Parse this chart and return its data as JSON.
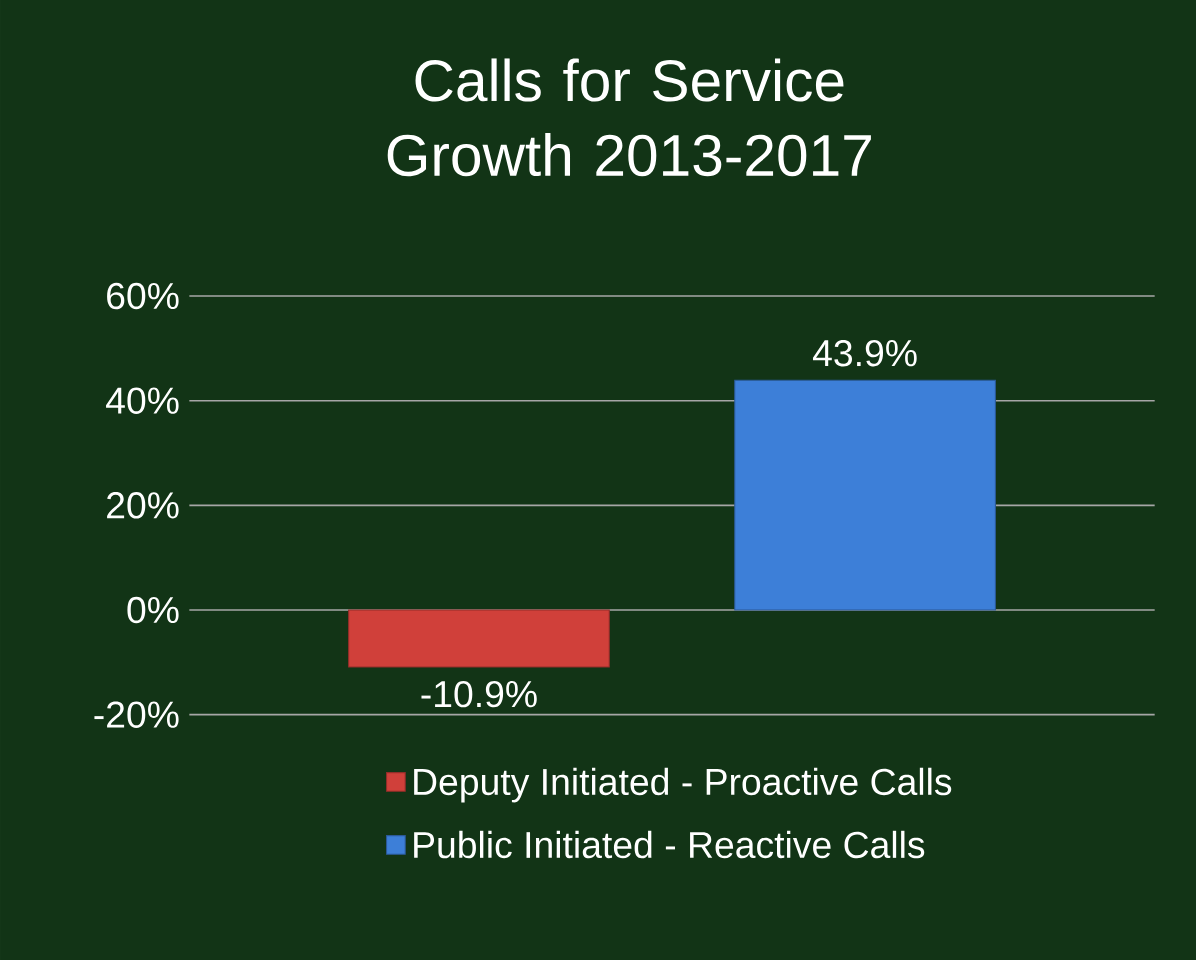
{
  "chart_data": {
    "type": "bar",
    "title": "Calls for Service Growth 2013-2017",
    "categories": [
      null
    ],
    "series": [
      {
        "name": "Deputy Initiated - Proactive Calls",
        "color": "#d0403a",
        "values": [
          -10.9
        ],
        "value_labels": [
          "-10.9%"
        ]
      },
      {
        "name": "Public Initiated - Reactive Calls",
        "color": "#3d7fd8",
        "values": [
          43.9
        ],
        "value_labels": [
          "43.9%"
        ]
      }
    ],
    "ylim": [
      -20,
      60
    ],
    "yticks": [
      {
        "value": -20,
        "label": "-20%"
      },
      {
        "value": 0,
        "label": "0%"
      },
      {
        "value": 20,
        "label": "20%"
      },
      {
        "value": 40,
        "label": "40%"
      },
      {
        "value": 60,
        "label": "60%"
      }
    ],
    "grid": "y",
    "legend": "bottom"
  }
}
